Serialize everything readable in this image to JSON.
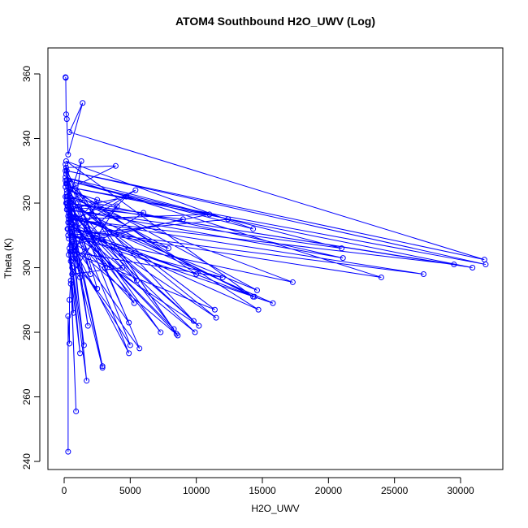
{
  "chart_data": {
    "type": "line",
    "title": "ATOM4 Southbound H2O_UWV (Log)",
    "x_label": "H2O_UWV",
    "y_label": "Theta (K)",
    "markers": true,
    "grid": false,
    "xlim": [
      -1229,
      33196
    ],
    "ylim": [
      237.5,
      368.05
    ],
    "xticks": [
      0,
      5000,
      10000,
      15000,
      20000,
      25000,
      30000
    ],
    "yticks": [
      240,
      260,
      280,
      300,
      320,
      340,
      360
    ],
    "x": [
      100,
      120,
      150,
      200,
      300,
      1400,
      400,
      31800,
      200,
      31900,
      300,
      30900,
      150,
      29500,
      500,
      27200,
      250,
      24000,
      100,
      21000,
      300,
      21100,
      200,
      17300,
      600,
      15800,
      350,
      14600,
      100,
      14700,
      400,
      14400,
      250,
      14300,
      150,
      14300,
      200,
      12400,
      300,
      12000,
      450,
      11400,
      100,
      11500,
      350,
      11000,
      600,
      10200,
      200,
      9900,
      300,
      10000,
      150,
      9800,
      250,
      9000,
      500,
      8600,
      100,
      8500,
      400,
      8300,
      200,
      7900,
      300,
      7300,
      250,
      6000,
      700,
      5700,
      150,
      5500,
      300,
      5400,
      400,
      5300,
      200,
      4900,
      350,
      4900,
      100,
      5000,
      500,
      4700,
      300,
      4400,
      600,
      4000,
      200,
      3900,
      150,
      3100,
      400,
      2900,
      250,
      2900,
      300,
      2500,
      500,
      2500,
      200,
      2000,
      300,
      1800,
      100,
      1700,
      400,
      1500,
      200,
      1300,
      350,
      1200,
      600,
      1200,
      250,
      900,
      300,
      700,
      500,
      500,
      400,
      400,
      300,
      300
    ],
    "series": [
      {
        "color": "#0000ff",
        "values": [
          359,
          358.8,
          347.5,
          346,
          335,
          351,
          342,
          302.5,
          330,
          301,
          325,
          300,
          320,
          301,
          315,
          298,
          312,
          297,
          328,
          306,
          318,
          303,
          322,
          295.5,
          310,
          289,
          317,
          293,
          325,
          287,
          313,
          291,
          320,
          291,
          333,
          312,
          327,
          315,
          310,
          297,
          305,
          287,
          322,
          284.5,
          315,
          316.5,
          308,
          282,
          318,
          280,
          312,
          298,
          326,
          283.5,
          319,
          315,
          307,
          279,
          330,
          279.5,
          314,
          281,
          323,
          306,
          316,
          280,
          320,
          317,
          303,
          275,
          329,
          296,
          314,
          324,
          311,
          289,
          321,
          273.5,
          309,
          283,
          327,
          276,
          305,
          322,
          318,
          300,
          298,
          319,
          324,
          331.5,
          331,
          300,
          316,
          269.5,
          322,
          269,
          312,
          321,
          302,
          293.5,
          326,
          298,
          319,
          282,
          332,
          265,
          306,
          276,
          320,
          333,
          304,
          273.5,
          300,
          297,
          326,
          255.5,
          318,
          286,
          295,
          296,
          290,
          276.5,
          285,
          243
        ]
      }
    ]
  }
}
